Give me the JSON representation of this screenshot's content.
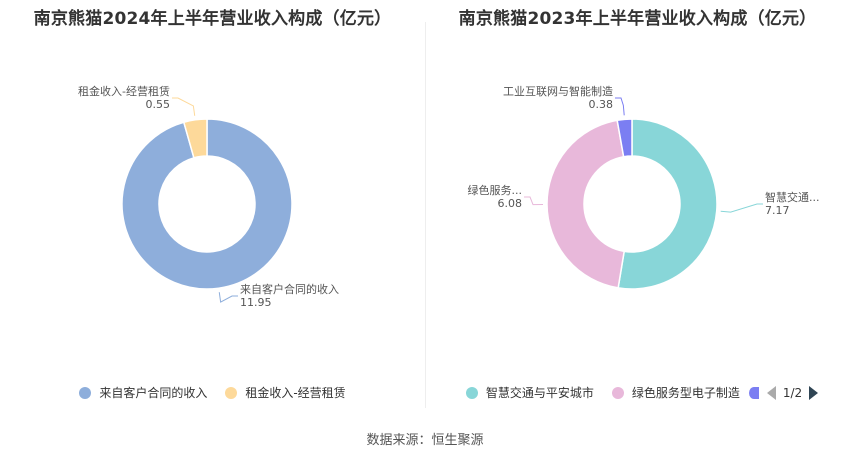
{
  "footer": {
    "source": "数据来源：恒生聚源"
  },
  "pager": {
    "text": "1/2"
  },
  "chart_data": [
    {
      "type": "pie",
      "donut": true,
      "title": "南京熊猫2024年上半年营业收入构成（亿元）",
      "slices": [
        {
          "name": "来自客户合同的收入",
          "value": 11.95,
          "label": "来自客户合同的收入",
          "color": "#8eaedb"
        },
        {
          "name": "租金收入-经营租赁",
          "value": 0.55,
          "label": "租金收入-经营租赁",
          "color": "#fdd99a"
        }
      ],
      "legend": [
        "来自客户合同的收入",
        "租金收入-经营租赁"
      ],
      "legend_position": "bottom"
    },
    {
      "type": "pie",
      "donut": true,
      "title": "南京熊猫2023年上半年营业收入构成（亿元）",
      "slices": [
        {
          "name": "智慧交通与平安城市",
          "value": 7.17,
          "label": "智慧交通...",
          "color": "#88d6d8"
        },
        {
          "name": "绿色服务型电子制造",
          "value": 6.08,
          "label": "绿色服务...",
          "color": "#e8b8da"
        },
        {
          "name": "工业互联网与智能制造",
          "value": 0.38,
          "label": "工业互联网与智能制造",
          "color": "#7b7ef2"
        }
      ],
      "legend": [
        "智慧交通与平安城市",
        "绿色服务型电子制造"
      ],
      "legend_position": "bottom"
    }
  ]
}
